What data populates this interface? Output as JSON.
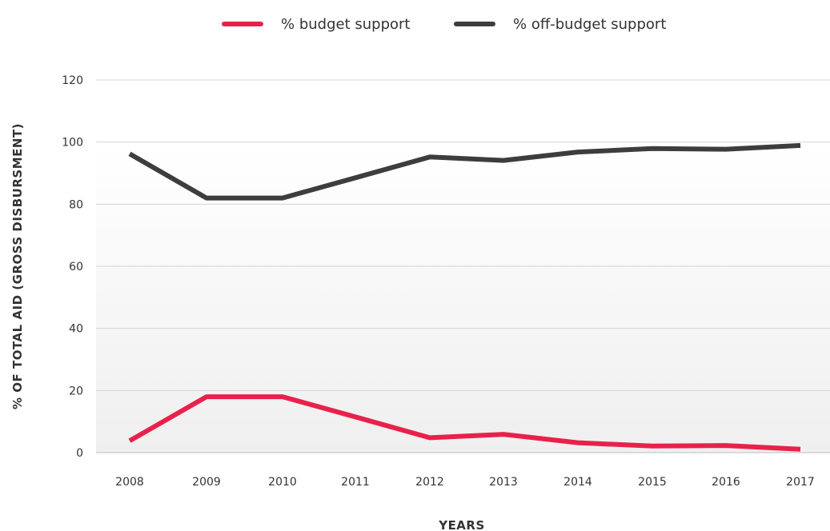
{
  "chart_data": {
    "type": "line",
    "title": "",
    "xlabel": "YEARS",
    "ylabel": "% OF TOTAL AID (GROSS DISBURSMENT)",
    "categories": [
      "2008",
      "2009",
      "2010",
      "2011",
      "2012",
      "2013",
      "2014",
      "2015",
      "2016",
      "2017"
    ],
    "y_ticks": [
      "0",
      "20",
      "40",
      "60",
      "80",
      "100",
      "120"
    ],
    "ylim": [
      0,
      120
    ],
    "grid": true,
    "legend_position": "top-center",
    "series": [
      {
        "name": "% budget support",
        "color": "#e8214b",
        "values": [
          3.8,
          18,
          18,
          11.5,
          4.8,
          5.9,
          3.2,
          2.1,
          2.3,
          1.1
        ]
      },
      {
        "name": "% off-budget support",
        "color": "#3d3d3d",
        "values": [
          96.2,
          82,
          82,
          88.5,
          95.2,
          94.1,
          96.8,
          97.9,
          97.7,
          98.9
        ]
      }
    ]
  }
}
